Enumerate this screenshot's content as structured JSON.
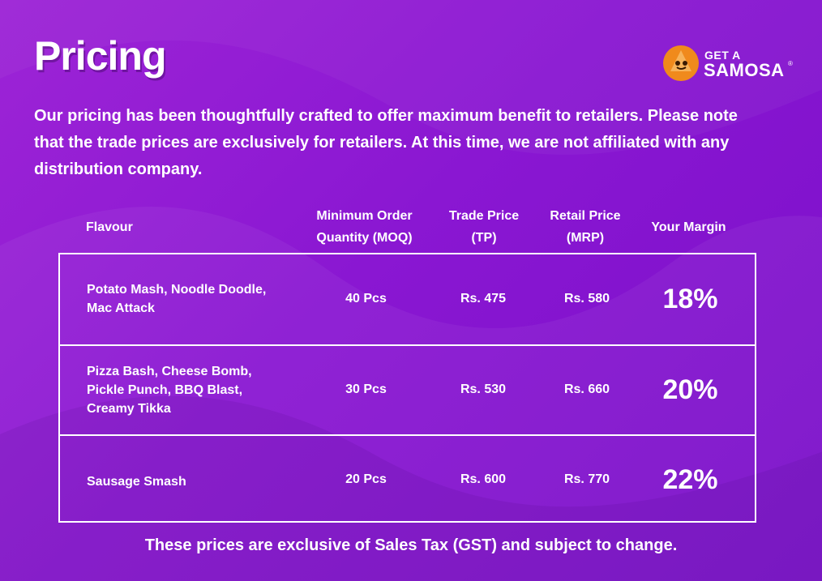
{
  "title": "Pricing",
  "intro": "Our pricing has been thoughtfully crafted to offer maximum benefit to retailers. Please note that the trade prices are exclusively for retailers. At this time, we are not affiliated with any distribution company.",
  "logo": {
    "line1": "GET A",
    "line2": "SAMOSA",
    "reg": "®"
  },
  "table": {
    "headers": {
      "flavour": "Flavour",
      "moq_line1": "Minimum Order",
      "moq_line2": "Quantity (MOQ)",
      "tp_line1": "Trade Price",
      "tp_line2": "(TP)",
      "mrp_line1": "Retail Price",
      "mrp_line2": "(MRP)",
      "margin": "Your Margin"
    },
    "rows": [
      {
        "flavour_lines": [
          "Potato Mash, Noodle Doodle,",
          "Mac Attack"
        ],
        "moq": "40 Pcs",
        "tp": "Rs. 475",
        "mrp": "Rs. 580",
        "margin": "18%"
      },
      {
        "flavour_lines": [
          "Pizza Bash, Cheese Bomb,",
          "Pickle Punch, BBQ Blast,",
          "Creamy Tikka"
        ],
        "moq": "30 Pcs",
        "tp": "Rs. 530",
        "mrp": "Rs. 660",
        "margin": "20%"
      },
      {
        "flavour_lines": [
          "Sausage Smash"
        ],
        "moq": "20 Pcs",
        "tp": "Rs. 600",
        "mrp": "Rs. 770",
        "margin": "22%"
      }
    ]
  },
  "footnote": "These prices are exclusive of Sales Tax (GST) and subject to change.",
  "colors": {
    "background": "#8a17d2",
    "text": "#ffffff",
    "logo_orange": "#f08a1c"
  },
  "icons": {
    "logo": "samosa-mascot-icon"
  }
}
